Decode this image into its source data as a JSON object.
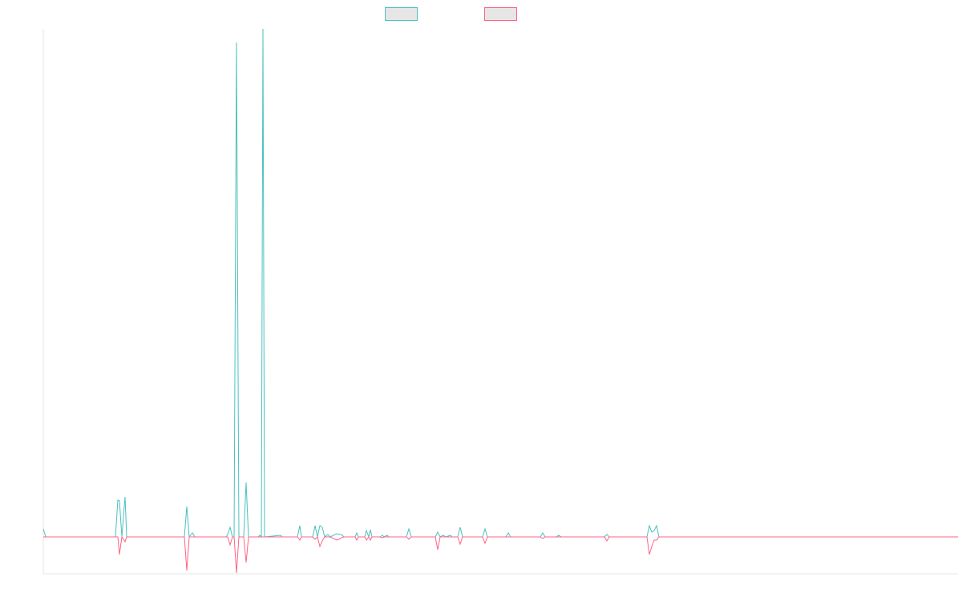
{
  "chart_data": {
    "type": "line",
    "x": [
      0,
      3,
      90,
      93,
      95,
      98,
      102,
      104,
      176,
      179,
      182,
      186,
      189,
      228,
      230,
      233,
      236,
      238,
      241,
      244,
      250,
      253,
      256,
      268,
      270,
      272,
      274,
      276,
      296,
      298,
      317,
      320,
      322,
      336,
      339,
      342,
      345,
      348,
      351,
      355,
      358,
      366,
      369,
      372,
      375,
      389,
      391,
      393,
      401,
      403,
      406,
      408,
      410,
      420,
      423,
      425,
      429,
      431,
      453,
      456,
      459,
      489,
      492,
      495,
      499,
      502,
      508,
      510,
      517,
      520,
      523,
      548,
      551,
      554,
      577,
      580,
      583,
      620,
      623,
      626,
      640,
      643,
      646,
      700,
      703,
      706,
      753,
      756,
      759,
      762,
      765,
      768,
      1141
    ],
    "series": [
      {
        "color": "#4bc0c0",
        "values": [
          10,
          0,
          0,
          46,
          45,
          0,
          50,
          0,
          0,
          38,
          0,
          5,
          0,
          0,
          3,
          12,
          0,
          0,
          617,
          0,
          0,
          68,
          0,
          0,
          2,
          0,
          634,
          0,
          2,
          0,
          0,
          14,
          0,
          0,
          14,
          0,
          14,
          12,
          0,
          3,
          0,
          4,
          3,
          3,
          0,
          0,
          5,
          0,
          0,
          8,
          0,
          9,
          0,
          0,
          2,
          0,
          2,
          0,
          0,
          10,
          0,
          0,
          6,
          0,
          2,
          0,
          2,
          0,
          0,
          12,
          0,
          0,
          10,
          0,
          0,
          5,
          0,
          0,
          5,
          0,
          0,
          2,
          0,
          0,
          3,
          0,
          0,
          14,
          6,
          8,
          14,
          0,
          0
        ]
      },
      {
        "color": "#ff6384",
        "values": [
          0,
          0,
          0,
          0,
          -22,
          0,
          -6,
          0,
          0,
          -42,
          0,
          0,
          0,
          0,
          0,
          -10,
          0,
          0,
          -45,
          0,
          0,
          -32,
          0,
          0,
          0,
          0,
          0,
          0,
          0,
          0,
          0,
          -4,
          0,
          0,
          -3,
          0,
          -12,
          -5,
          0,
          0,
          0,
          -4,
          -3,
          -1,
          0,
          0,
          -4,
          0,
          0,
          -4,
          0,
          -4,
          0,
          0,
          -1,
          0,
          0,
          0,
          0,
          -3,
          0,
          0,
          -16,
          0,
          0,
          0,
          0,
          0,
          0,
          -9,
          0,
          0,
          -8,
          0,
          0,
          0,
          0,
          0,
          -2,
          0,
          0,
          0,
          0,
          0,
          -5,
          0,
          0,
          -22,
          -12,
          -4,
          -4,
          0,
          0
        ]
      }
    ],
    "xlim": [
      0,
      1141
    ],
    "ylim": [
      -46,
      634
    ]
  }
}
